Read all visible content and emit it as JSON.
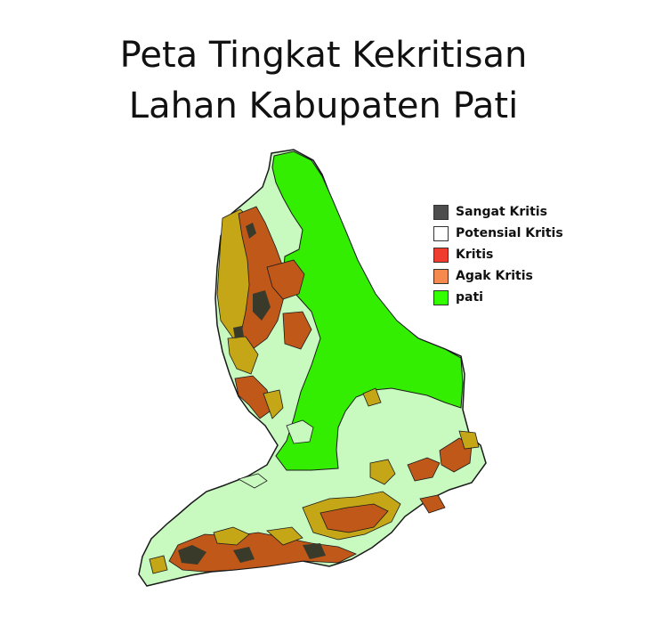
{
  "map": {
    "title_line1": "Peta Tingkat Kekritisan",
    "title_line2": "Lahan Kabupaten Pati",
    "legend": [
      {
        "label": "Sangat Kritis",
        "color": "#4d4d4d"
      },
      {
        "label": "Potensial Kritis",
        "color": "#ffffff"
      },
      {
        "label": "Kritis",
        "color": "#f03c2e"
      },
      {
        "label": "Agak Kritis",
        "color": "#f5894e"
      },
      {
        "label": "pati",
        "color": "#33ff00"
      }
    ],
    "layer_colors": {
      "base_light": "#c8fac0",
      "pati": "#33ee00",
      "brown": "#c0581a",
      "olive": "#c4a617",
      "dark": "#3a3a2a",
      "outline": "#1a1a1a"
    }
  }
}
